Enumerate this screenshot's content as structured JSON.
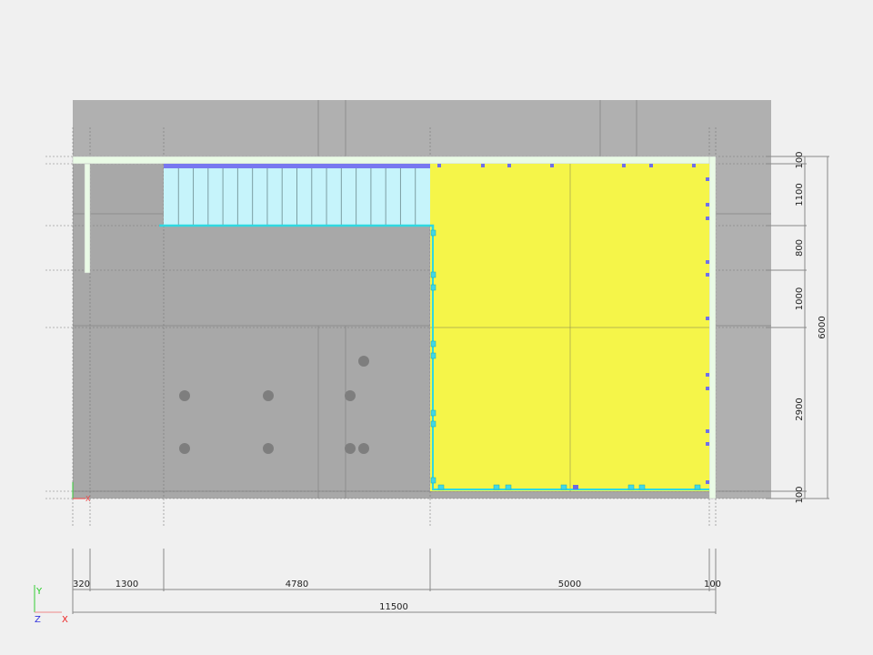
{
  "colors": {
    "background": "#f0f0f0",
    "slab_gray": "#b0b0b0",
    "floor_gray": "#a8a8a8",
    "room_yellow": "#f5f549",
    "stair_blue": "#c6f4fb",
    "beam_blue": "#7878f0",
    "edge_cyan": "#30d8e0",
    "wall_green": "#eafbe6",
    "column": "#808080"
  },
  "horizontal_dims": {
    "segments": [
      "320",
      "1300",
      "4780",
      "5000",
      "100"
    ],
    "total": "11500"
  },
  "vertical_dims": {
    "segments": [
      "100",
      "1100",
      "800",
      "1000",
      "2900",
      "100"
    ],
    "total": "6000"
  },
  "axes": {
    "x": "X",
    "y": "Y",
    "z": "Z"
  }
}
